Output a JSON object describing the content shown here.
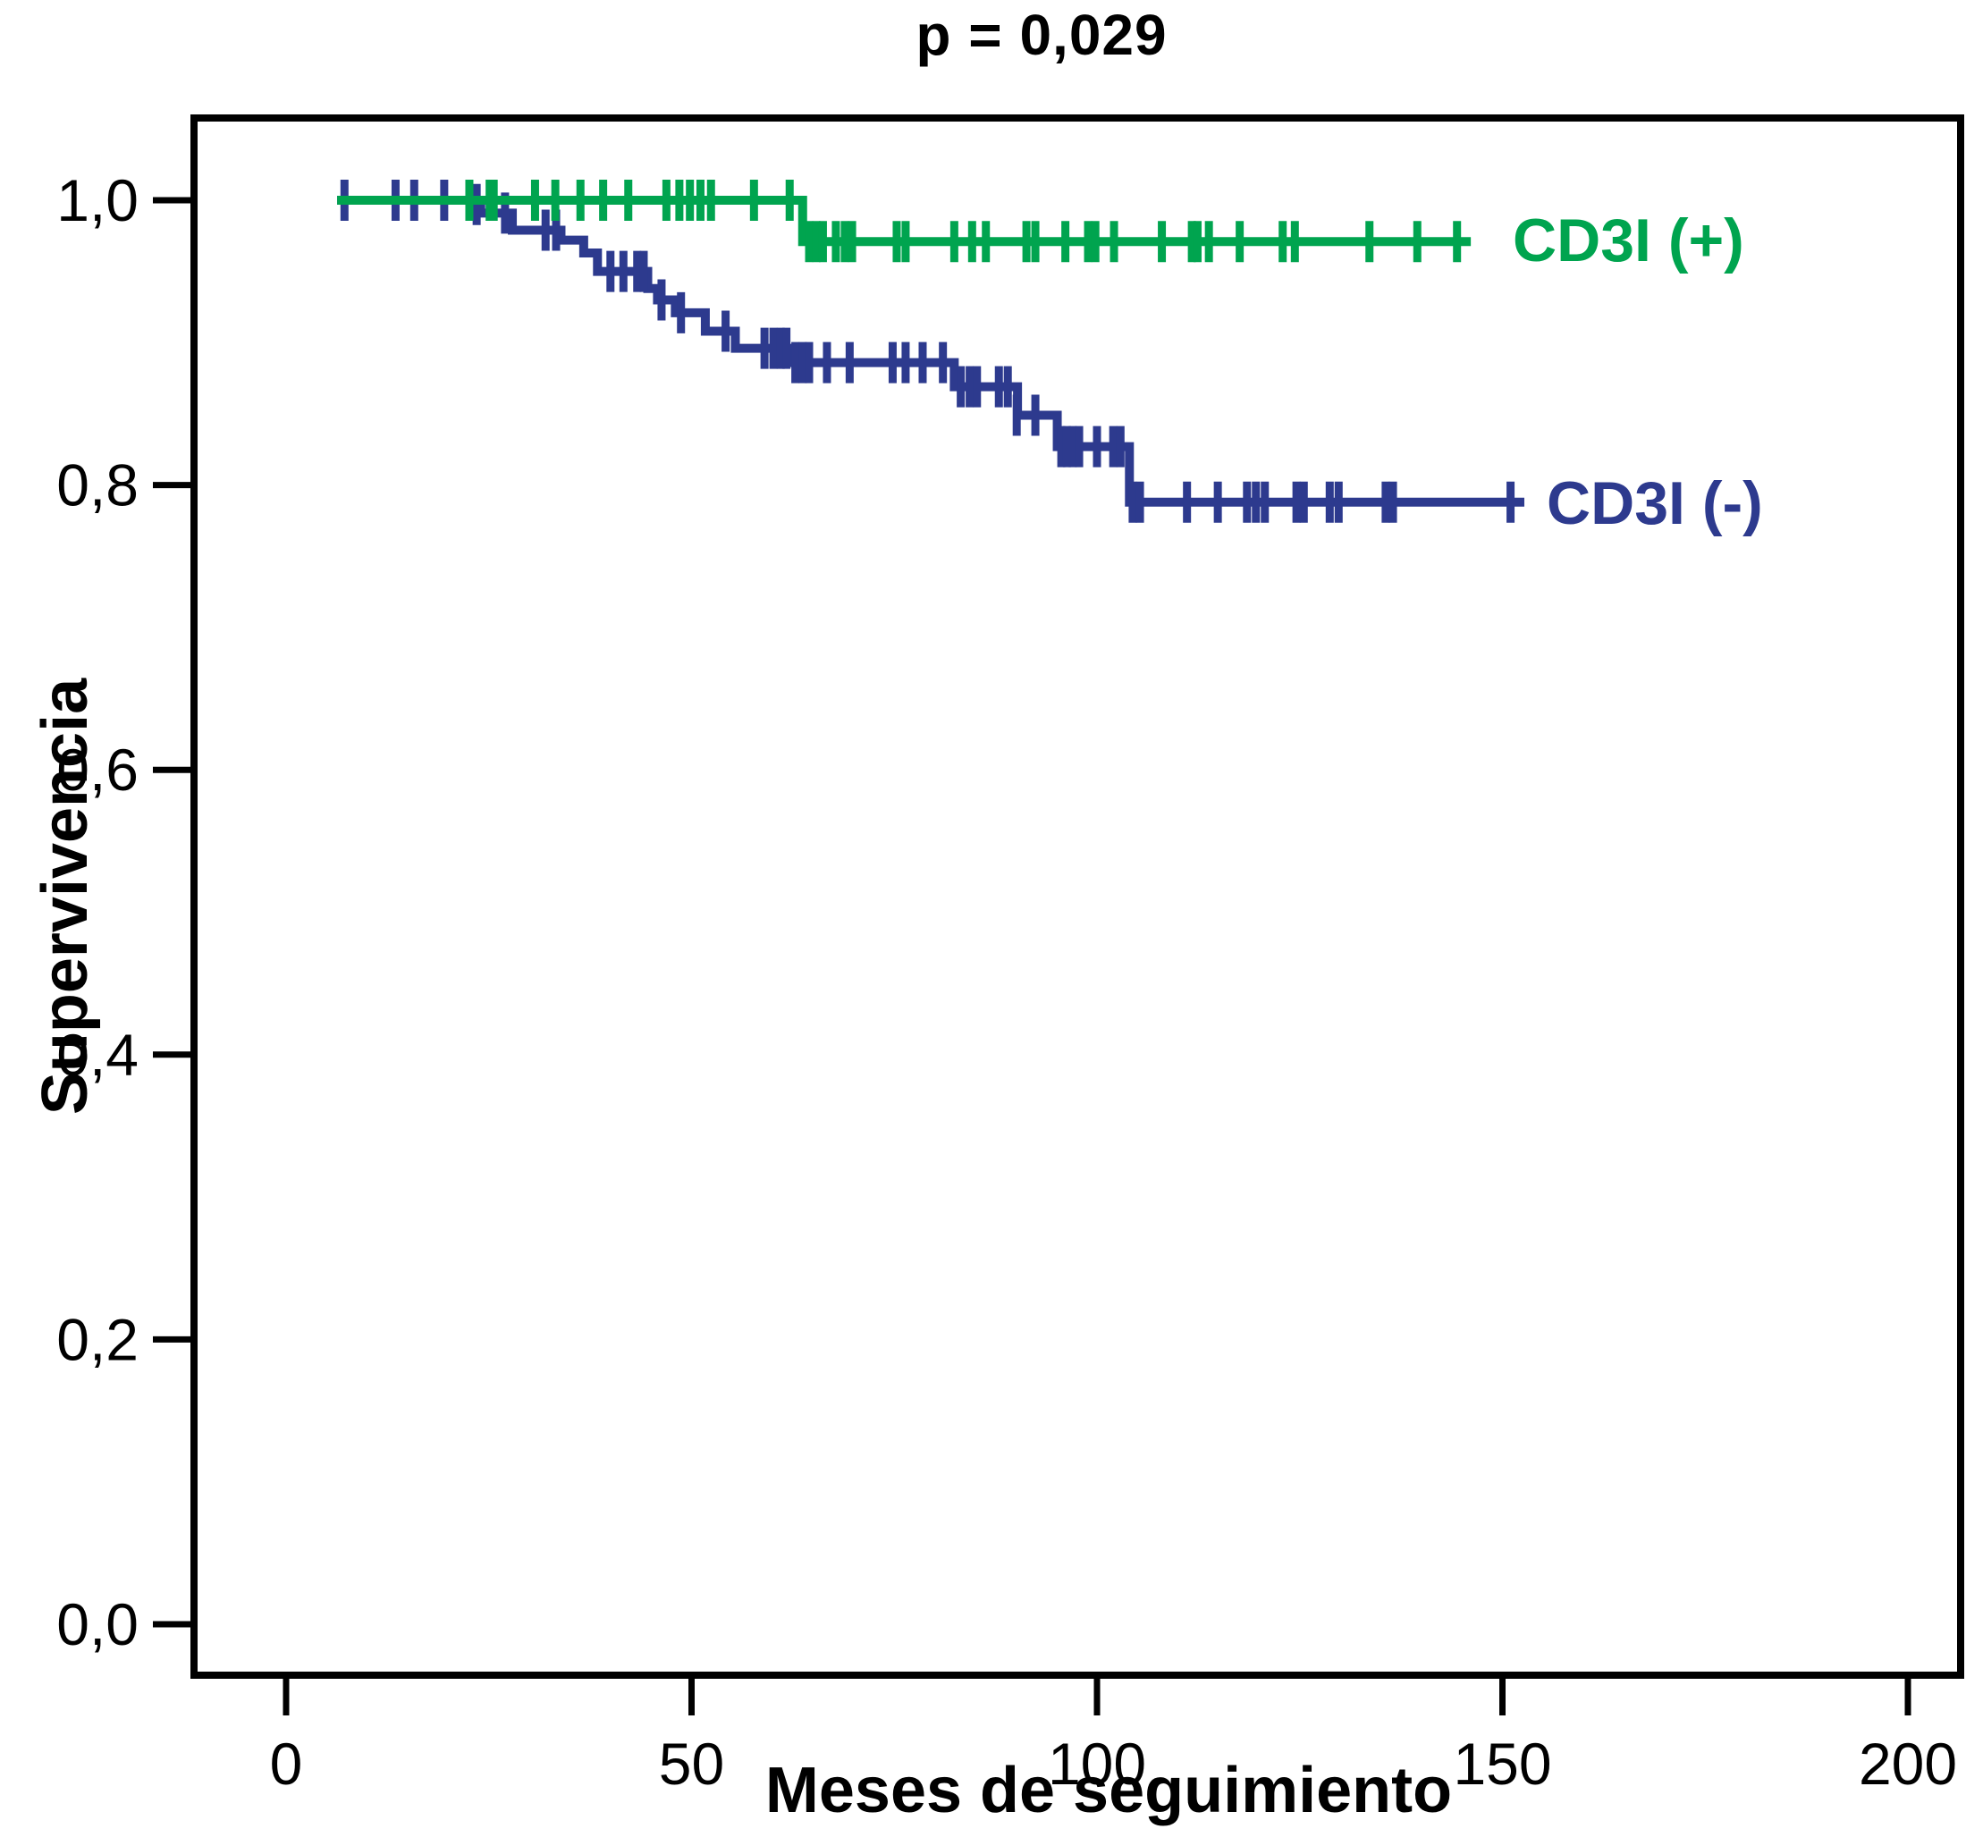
{
  "chart_data": {
    "type": "line",
    "subtype": "kaplan-meier-step",
    "title": "p = 0,029",
    "xlabel": "Meses de seguimiento",
    "ylabel": "Supervivencia",
    "xlim": [
      -11,
      207
    ],
    "ylim": [
      -0.07,
      1.06
    ],
    "grid": false,
    "legend_position": "right-of-curves",
    "axes": {
      "x_ticks": [
        {
          "label": "0",
          "value": 0
        },
        {
          "label": "50",
          "value": 50
        },
        {
          "label": "100",
          "value": 100
        },
        {
          "label": "150",
          "value": 150
        },
        {
          "label": "200",
          "value": 200
        }
      ],
      "y_ticks": [
        {
          "label": "1,0",
          "value": 1.0
        },
        {
          "label": "0,8",
          "value": 0.8
        },
        {
          "label": "0,6",
          "value": 0.6
        },
        {
          "label": "0,4",
          "value": 0.4
        },
        {
          "label": "0,2",
          "value": 0.2
        },
        {
          "label": "0,0",
          "value": 0.0
        }
      ]
    },
    "series": [
      {
        "id": "cd3i-negative",
        "name": "CD3I (-)",
        "color": "#2d3a8e",
        "start_month": 6.3,
        "end_month": 152.7,
        "steps": [
          [
            6.3,
            1.0
          ],
          [
            23.0,
            0.997
          ],
          [
            24.0,
            0.991
          ],
          [
            27.9,
            0.979
          ],
          [
            33.9,
            0.972
          ],
          [
            36.7,
            0.963
          ],
          [
            38.4,
            0.95
          ],
          [
            44.6,
            0.938
          ],
          [
            45.8,
            0.93
          ],
          [
            48.0,
            0.921
          ],
          [
            51.7,
            0.908
          ],
          [
            55.4,
            0.896
          ],
          [
            62.1,
            0.886
          ],
          [
            82.4,
            0.869
          ],
          [
            90.2,
            0.849
          ],
          [
            95.1,
            0.827
          ],
          [
            104.0,
            0.788
          ]
        ],
        "censors": [
          [
            7.2,
            1.0
          ],
          [
            13.5,
            1.0
          ],
          [
            15.8,
            1.0
          ],
          [
            19.5,
            1.0
          ],
          [
            23.5,
            0.997
          ],
          [
            27.0,
            0.991
          ],
          [
            32.0,
            0.979
          ],
          [
            33.3,
            0.979
          ],
          [
            40.0,
            0.95
          ],
          [
            41.6,
            0.95
          ],
          [
            43.3,
            0.95
          ],
          [
            44.1,
            0.95
          ],
          [
            46.3,
            0.93
          ],
          [
            48.7,
            0.921
          ],
          [
            54.2,
            0.908
          ],
          [
            59.0,
            0.896
          ],
          [
            60.1,
            0.896
          ],
          [
            61.0,
            0.896
          ],
          [
            61.7,
            0.896
          ],
          [
            62.8,
            0.886
          ],
          [
            63.7,
            0.886
          ],
          [
            64.5,
            0.886
          ],
          [
            66.7,
            0.886
          ],
          [
            69.5,
            0.886
          ],
          [
            74.8,
            0.886
          ],
          [
            76.4,
            0.886
          ],
          [
            78.5,
            0.886
          ],
          [
            81.0,
            0.886
          ],
          [
            83.2,
            0.869
          ],
          [
            84.3,
            0.869
          ],
          [
            85.2,
            0.869
          ],
          [
            87.9,
            0.869
          ],
          [
            89.0,
            0.869
          ],
          [
            90.1,
            0.849
          ],
          [
            92.4,
            0.849
          ],
          [
            95.6,
            0.827
          ],
          [
            96.3,
            0.827
          ],
          [
            97.0,
            0.827
          ],
          [
            97.8,
            0.827
          ],
          [
            100.0,
            0.827
          ],
          [
            102.0,
            0.827
          ],
          [
            102.9,
            0.827
          ],
          [
            104.4,
            0.788
          ],
          [
            105.3,
            0.788
          ],
          [
            111.1,
            0.788
          ],
          [
            114.9,
            0.788
          ],
          [
            118.5,
            0.788
          ],
          [
            119.6,
            0.788
          ],
          [
            120.7,
            0.788
          ],
          [
            124.6,
            0.788
          ],
          [
            125.5,
            0.788
          ],
          [
            128.7,
            0.788
          ],
          [
            129.8,
            0.788
          ],
          [
            135.6,
            0.788
          ],
          [
            136.5,
            0.788
          ],
          [
            151.0,
            0.788
          ]
        ]
      },
      {
        "id": "cd3i-positive",
        "name": "CD3I (+)",
        "color": "#00a44f",
        "start_month": 6.3,
        "end_month": 146.1,
        "steps": [
          [
            6.3,
            1.0
          ],
          [
            63.7,
            0.971
          ]
        ],
        "censors": [
          [
            22.6,
            1.0
          ],
          [
            25.1,
            1.0
          ],
          [
            25.6,
            1.0
          ],
          [
            30.7,
            1.0
          ],
          [
            33.2,
            1.0
          ],
          [
            36.3,
            1.0
          ],
          [
            39.1,
            1.0
          ],
          [
            42.2,
            1.0
          ],
          [
            46.9,
            1.0
          ],
          [
            48.5,
            1.0
          ],
          [
            49.8,
            1.0
          ],
          [
            51.1,
            1.0
          ],
          [
            52.4,
            1.0
          ],
          [
            57.7,
            1.0
          ],
          [
            62.1,
            1.0
          ],
          [
            64.5,
            0.971
          ],
          [
            65.4,
            0.971
          ],
          [
            66.2,
            0.971
          ],
          [
            67.8,
            0.971
          ],
          [
            68.9,
            0.971
          ],
          [
            69.8,
            0.971
          ],
          [
            75.3,
            0.971
          ],
          [
            76.4,
            0.971
          ],
          [
            82.4,
            0.971
          ],
          [
            84.6,
            0.971
          ],
          [
            86.3,
            0.971
          ],
          [
            91.3,
            0.971
          ],
          [
            92.4,
            0.971
          ],
          [
            96.1,
            0.971
          ],
          [
            98.9,
            0.971
          ],
          [
            99.8,
            0.971
          ],
          [
            102.1,
            0.971
          ],
          [
            108.0,
            0.971
          ],
          [
            111.7,
            0.971
          ],
          [
            112.4,
            0.971
          ],
          [
            113.8,
            0.971
          ],
          [
            117.6,
            0.971
          ],
          [
            122.9,
            0.971
          ],
          [
            124.4,
            0.971
          ],
          [
            133.6,
            0.971
          ],
          [
            139.5,
            0.971
          ],
          [
            144.4,
            0.971
          ]
        ]
      }
    ]
  }
}
